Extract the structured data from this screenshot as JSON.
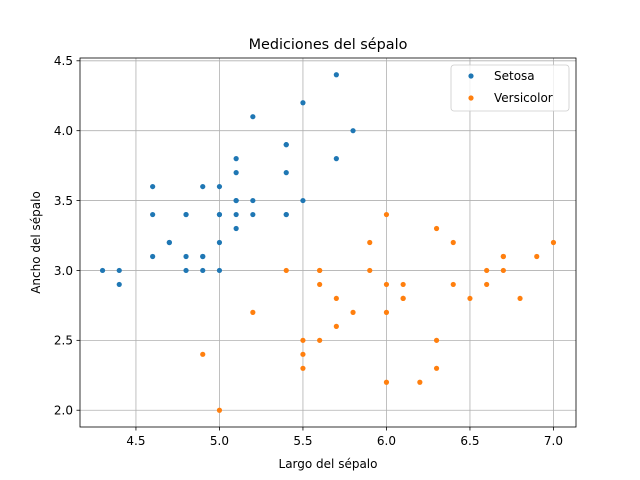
{
  "chart_data": {
    "type": "scatter",
    "title": "Mediciones del sépalo",
    "xlabel": "Largo del sépalo",
    "ylabel": "Ancho del sépalo",
    "xlim": [
      4.165,
      7.135
    ],
    "ylim": [
      1.88,
      4.52
    ],
    "xticks": [
      4.5,
      5.0,
      5.5,
      6.0,
      6.5,
      7.0
    ],
    "yticks": [
      2.0,
      2.5,
      3.0,
      3.5,
      4.0,
      4.5
    ],
    "xtick_labels": [
      "4.5",
      "5.0",
      "5.5",
      "6.0",
      "6.5",
      "7.0"
    ],
    "ytick_labels": [
      "2.0",
      "2.5",
      "3.0",
      "3.5",
      "4.0",
      "4.5"
    ],
    "grid": true,
    "legend_position": "top-right",
    "series": [
      {
        "name": "Setosa",
        "color": "#1f77b4",
        "points": [
          [
            5.1,
            3.5
          ],
          [
            4.9,
            3.0
          ],
          [
            4.7,
            3.2
          ],
          [
            4.6,
            3.1
          ],
          [
            5.0,
            3.6
          ],
          [
            5.4,
            3.9
          ],
          [
            4.6,
            3.4
          ],
          [
            5.0,
            3.4
          ],
          [
            4.4,
            2.9
          ],
          [
            4.9,
            3.1
          ],
          [
            5.4,
            3.7
          ],
          [
            4.8,
            3.4
          ],
          [
            4.8,
            3.0
          ],
          [
            4.3,
            3.0
          ],
          [
            5.8,
            4.0
          ],
          [
            5.7,
            4.4
          ],
          [
            5.4,
            3.9
          ],
          [
            5.1,
            3.5
          ],
          [
            5.7,
            3.8
          ],
          [
            5.1,
            3.8
          ],
          [
            5.4,
            3.4
          ],
          [
            5.1,
            3.7
          ],
          [
            4.6,
            3.6
          ],
          [
            5.1,
            3.3
          ],
          [
            4.8,
            3.4
          ],
          [
            5.0,
            3.0
          ],
          [
            5.0,
            3.4
          ],
          [
            5.2,
            3.5
          ],
          [
            5.2,
            3.4
          ],
          [
            4.7,
            3.2
          ],
          [
            4.8,
            3.1
          ],
          [
            5.4,
            3.4
          ],
          [
            5.2,
            4.1
          ],
          [
            5.5,
            4.2
          ],
          [
            4.9,
            3.1
          ],
          [
            5.0,
            3.2
          ],
          [
            5.5,
            3.5
          ],
          [
            4.9,
            3.6
          ],
          [
            4.4,
            3.0
          ],
          [
            5.1,
            3.4
          ]
        ]
      },
      {
        "name": "Versicolor",
        "color": "#ff7f0e",
        "points": [
          [
            7.0,
            3.2
          ],
          [
            6.4,
            3.2
          ],
          [
            6.9,
            3.1
          ],
          [
            5.5,
            2.3
          ],
          [
            6.5,
            2.8
          ],
          [
            5.7,
            2.8
          ],
          [
            6.3,
            3.3
          ],
          [
            4.9,
            2.4
          ],
          [
            6.6,
            2.9
          ],
          [
            5.2,
            2.7
          ],
          [
            5.0,
            2.0
          ],
          [
            5.9,
            3.0
          ],
          [
            6.0,
            2.2
          ],
          [
            6.1,
            2.9
          ],
          [
            5.6,
            2.9
          ],
          [
            6.7,
            3.1
          ],
          [
            5.6,
            3.0
          ],
          [
            5.8,
            2.7
          ],
          [
            6.2,
            2.2
          ],
          [
            5.6,
            2.5
          ],
          [
            5.9,
            3.2
          ],
          [
            6.1,
            2.8
          ],
          [
            6.3,
            2.5
          ],
          [
            6.1,
            2.8
          ],
          [
            6.4,
            2.9
          ],
          [
            6.6,
            3.0
          ],
          [
            6.8,
            2.8
          ],
          [
            6.7,
            3.0
          ],
          [
            6.0,
            2.9
          ],
          [
            5.7,
            2.6
          ],
          [
            5.5,
            2.4
          ],
          [
            5.5,
            2.5
          ],
          [
            6.0,
            2.7
          ],
          [
            5.4,
            3.0
          ],
          [
            6.0,
            3.4
          ],
          [
            6.7,
            3.1
          ],
          [
            6.3,
            2.3
          ],
          [
            5.6,
            3.0
          ]
        ]
      }
    ]
  }
}
